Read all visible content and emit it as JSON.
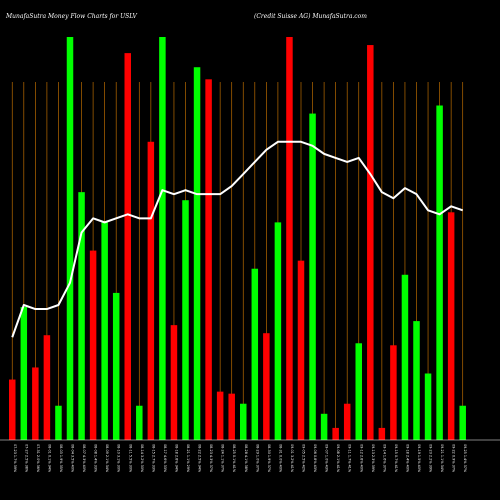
{
  "header": {
    "left": "MunafaSutra  Money Flow  Charts for USLV",
    "right": "(Credit Suisse   AG) MunafaSutra.com"
  },
  "chart_data": {
    "type": "bar",
    "colors": {
      "up": "#00ff00",
      "down": "#ff0000",
      "line": "#ffffff",
      "grid": "#b86a00",
      "background": "#000000"
    },
    "ylim": [
      0,
      100
    ],
    "bars": [
      {
        "value": 15,
        "dir": "down"
      },
      {
        "value": 33,
        "dir": "up"
      },
      {
        "value": 18,
        "dir": "down"
      },
      {
        "value": 26,
        "dir": "down"
      },
      {
        "value": 8.5,
        "dir": "up"
      },
      {
        "value": 100,
        "dir": "up"
      },
      {
        "value": 61.5,
        "dir": "up"
      },
      {
        "value": 47,
        "dir": "down"
      },
      {
        "value": 54,
        "dir": "up"
      },
      {
        "value": 36.5,
        "dir": "up"
      },
      {
        "value": 96,
        "dir": "down"
      },
      {
        "value": 8.5,
        "dir": "up"
      },
      {
        "value": 74,
        "dir": "down"
      },
      {
        "value": 100,
        "dir": "up"
      },
      {
        "value": 28.5,
        "dir": "down"
      },
      {
        "value": 59.5,
        "dir": "up"
      },
      {
        "value": 92.5,
        "dir": "up"
      },
      {
        "value": 89.5,
        "dir": "down"
      },
      {
        "value": 12,
        "dir": "down"
      },
      {
        "value": 11.5,
        "dir": "down"
      },
      {
        "value": 9,
        "dir": "up"
      },
      {
        "value": 42.5,
        "dir": "up"
      },
      {
        "value": 26.5,
        "dir": "down"
      },
      {
        "value": 54,
        "dir": "up"
      },
      {
        "value": 100,
        "dir": "down"
      },
      {
        "value": 44.5,
        "dir": "down"
      },
      {
        "value": 81,
        "dir": "up"
      },
      {
        "value": 6.5,
        "dir": "up"
      },
      {
        "value": 3,
        "dir": "down"
      },
      {
        "value": 9,
        "dir": "down"
      },
      {
        "value": 24,
        "dir": "up"
      },
      {
        "value": 98,
        "dir": "down"
      },
      {
        "value": 3,
        "dir": "down"
      },
      {
        "value": 23.5,
        "dir": "down"
      },
      {
        "value": 41,
        "dir": "up"
      },
      {
        "value": 29.5,
        "dir": "up"
      },
      {
        "value": 16.5,
        "dir": "up"
      },
      {
        "value": 83,
        "dir": "up"
      },
      {
        "value": 56.5,
        "dir": "down"
      },
      {
        "value": 8.5,
        "dir": "up"
      }
    ],
    "line": [
      25.5,
      33.5,
      32.5,
      32.5,
      33.5,
      39,
      51.5,
      55,
      54,
      55,
      56,
      55,
      55,
      62,
      61,
      62,
      61,
      61,
      61,
      63,
      66,
      69,
      72,
      74,
      74,
      74,
      73,
      71,
      70,
      69,
      70,
      66,
      61.5,
      60,
      62.5,
      61,
      57,
      56,
      58,
      57
    ],
    "line_raw": [
      [
        6,
        0.73
      ],
      [
        24,
        0.6
      ],
      [
        36,
        0.62
      ],
      [
        48,
        0.62
      ],
      [
        60,
        0.6
      ],
      [
        70,
        0.54
      ],
      [
        80,
        0.44
      ],
      [
        92,
        0.42
      ],
      [
        104,
        0.43
      ],
      [
        116,
        0.41
      ],
      [
        128,
        0.38
      ],
      [
        140,
        0.41
      ],
      [
        152,
        0.42
      ],
      [
        164,
        0.37
      ],
      [
        174,
        0.38
      ],
      [
        186,
        0.31
      ],
      [
        196,
        0.26
      ],
      [
        206,
        0.3
      ],
      [
        216,
        0.38
      ],
      [
        228,
        0.38
      ],
      [
        240,
        0.43
      ],
      [
        252,
        0.38
      ],
      [
        264,
        0.42
      ],
      [
        274,
        0.33
      ],
      [
        286,
        0.41
      ],
      [
        298,
        0.43
      ],
      [
        310,
        0.43
      ],
      [
        322,
        0.41
      ],
      [
        334,
        0.38
      ],
      [
        346,
        0.44
      ],
      [
        358,
        0.4
      ],
      [
        370,
        0.4
      ],
      [
        380,
        0.37
      ],
      [
        390,
        0.41
      ],
      [
        400,
        0.4
      ],
      [
        414,
        0.4
      ],
      [
        426,
        0.39
      ],
      [
        436,
        0.34
      ],
      [
        446,
        0.37
      ],
      [
        458,
        0.37
      ]
    ],
    "x_ticks": [
      "06-01-27 Vol 39%",
      "06-02-17 4% 20%",
      "06-03-07 3.3% 21%",
      "06-03-28 1.9% 18%",
      "06-04-17 1.8% 54%",
      "06-05-08 4.2% 21%",
      "06-05-26 -1.6% 22%",
      "06-06-16 0.7% 39%",
      "06-07-07 2.0% 29%",
      "06-07-27 1.3% 32%",
      "06-08-16 2.0% 37%",
      "06-09-07 1.0% 43%",
      "06-09-26 -3.4% 25%",
      "06-10-17 1.4% 27%",
      "06-11-06 -1.5% 25%",
      "06-11-27 -1.8% 28%",
      "06-12-15 0.9% 33%",
      "07-01-08 -1.1% 36%",
      "07-01-29 1.3% 40%",
      "07-02-21 4.2% 43%",
      "07-03-14 -3.7% 46%",
      "07-04-04 1.5% 35%",
      "07-04-25 -2.1% 37%",
      "07-05-15 0.2% 40%",
      "07-06-06 1.0% 43%",
      "07-06-26 0.5% 45%",
      "07-07-17 -1.6% 48%",
      "07-08-07 1.8% 51%",
      "07-08-27 -1.4% 54%",
      "07-09-18 0.0% 56%",
      "07-10-08 2.9% 59%",
      "07-10-29 -2.5% 61%",
      "07-11-19 -0.6% 63%",
      "07-12-10 1.2% 66%",
      "07-12-31 0.1% 68%",
      "08-01-22 -2.6% 71%",
      "08-02-12 1.5% 73%",
      "08-03-04 -4.5% 76%",
      "08-03-25 0.9% 78%",
      "08-04-16 1.2% 80%"
    ],
    "x_ticks_display": [
      "07-23 1.7% 39%",
      "07-27 2.5% 38%",
      "07-31 2.0% 36%",
      "08-01 0.1% 34%",
      "08-03 1.9% 35%",
      "08-04 3.5% 40%",
      "08-07 4.3% 40%",
      "08-08 1.4% 33%",
      "08-09 2.1% 34%",
      "08-10 3.1% 30%",
      "08-11 5.5% 30%",
      "08-14 3.2% 30%",
      "08-15 2.7% 33%",
      "08-17 4.6% 33%",
      "08-18 2.8% 34%",
      "08-21 1.1% 29%",
      "08-22 2.5% 34%",
      "08-23 4.3% 37%",
      "08-24 1.1% 37%",
      "08-25 0.1% 41%",
      "08-28 4.1% 38%",
      "08-29 1.0% 37%",
      "08-30 1.9% 37%",
      "08-31 0.0% 40%",
      "09-01 3.2% 41%",
      "09-05 2.5% 42%",
      "09-06 0.8% 43%",
      "09-07 1.0% 43%",
      "09-08 2.1% 41%",
      "09-11 1.7% 41%",
      "09-12 2.8% 40%",
      "09-13 2.3% 39%",
      "09-14 1.6% 37%",
      "09-15 0.7% 41%",
      "09-18 2.4% 40%",
      "09-19 1.5% 40%",
      "09-20 2.2% 39%",
      "09-21 1.1% 34%",
      "09-22 0.9% 37%",
      "09-25 1.4% 37%"
    ]
  }
}
